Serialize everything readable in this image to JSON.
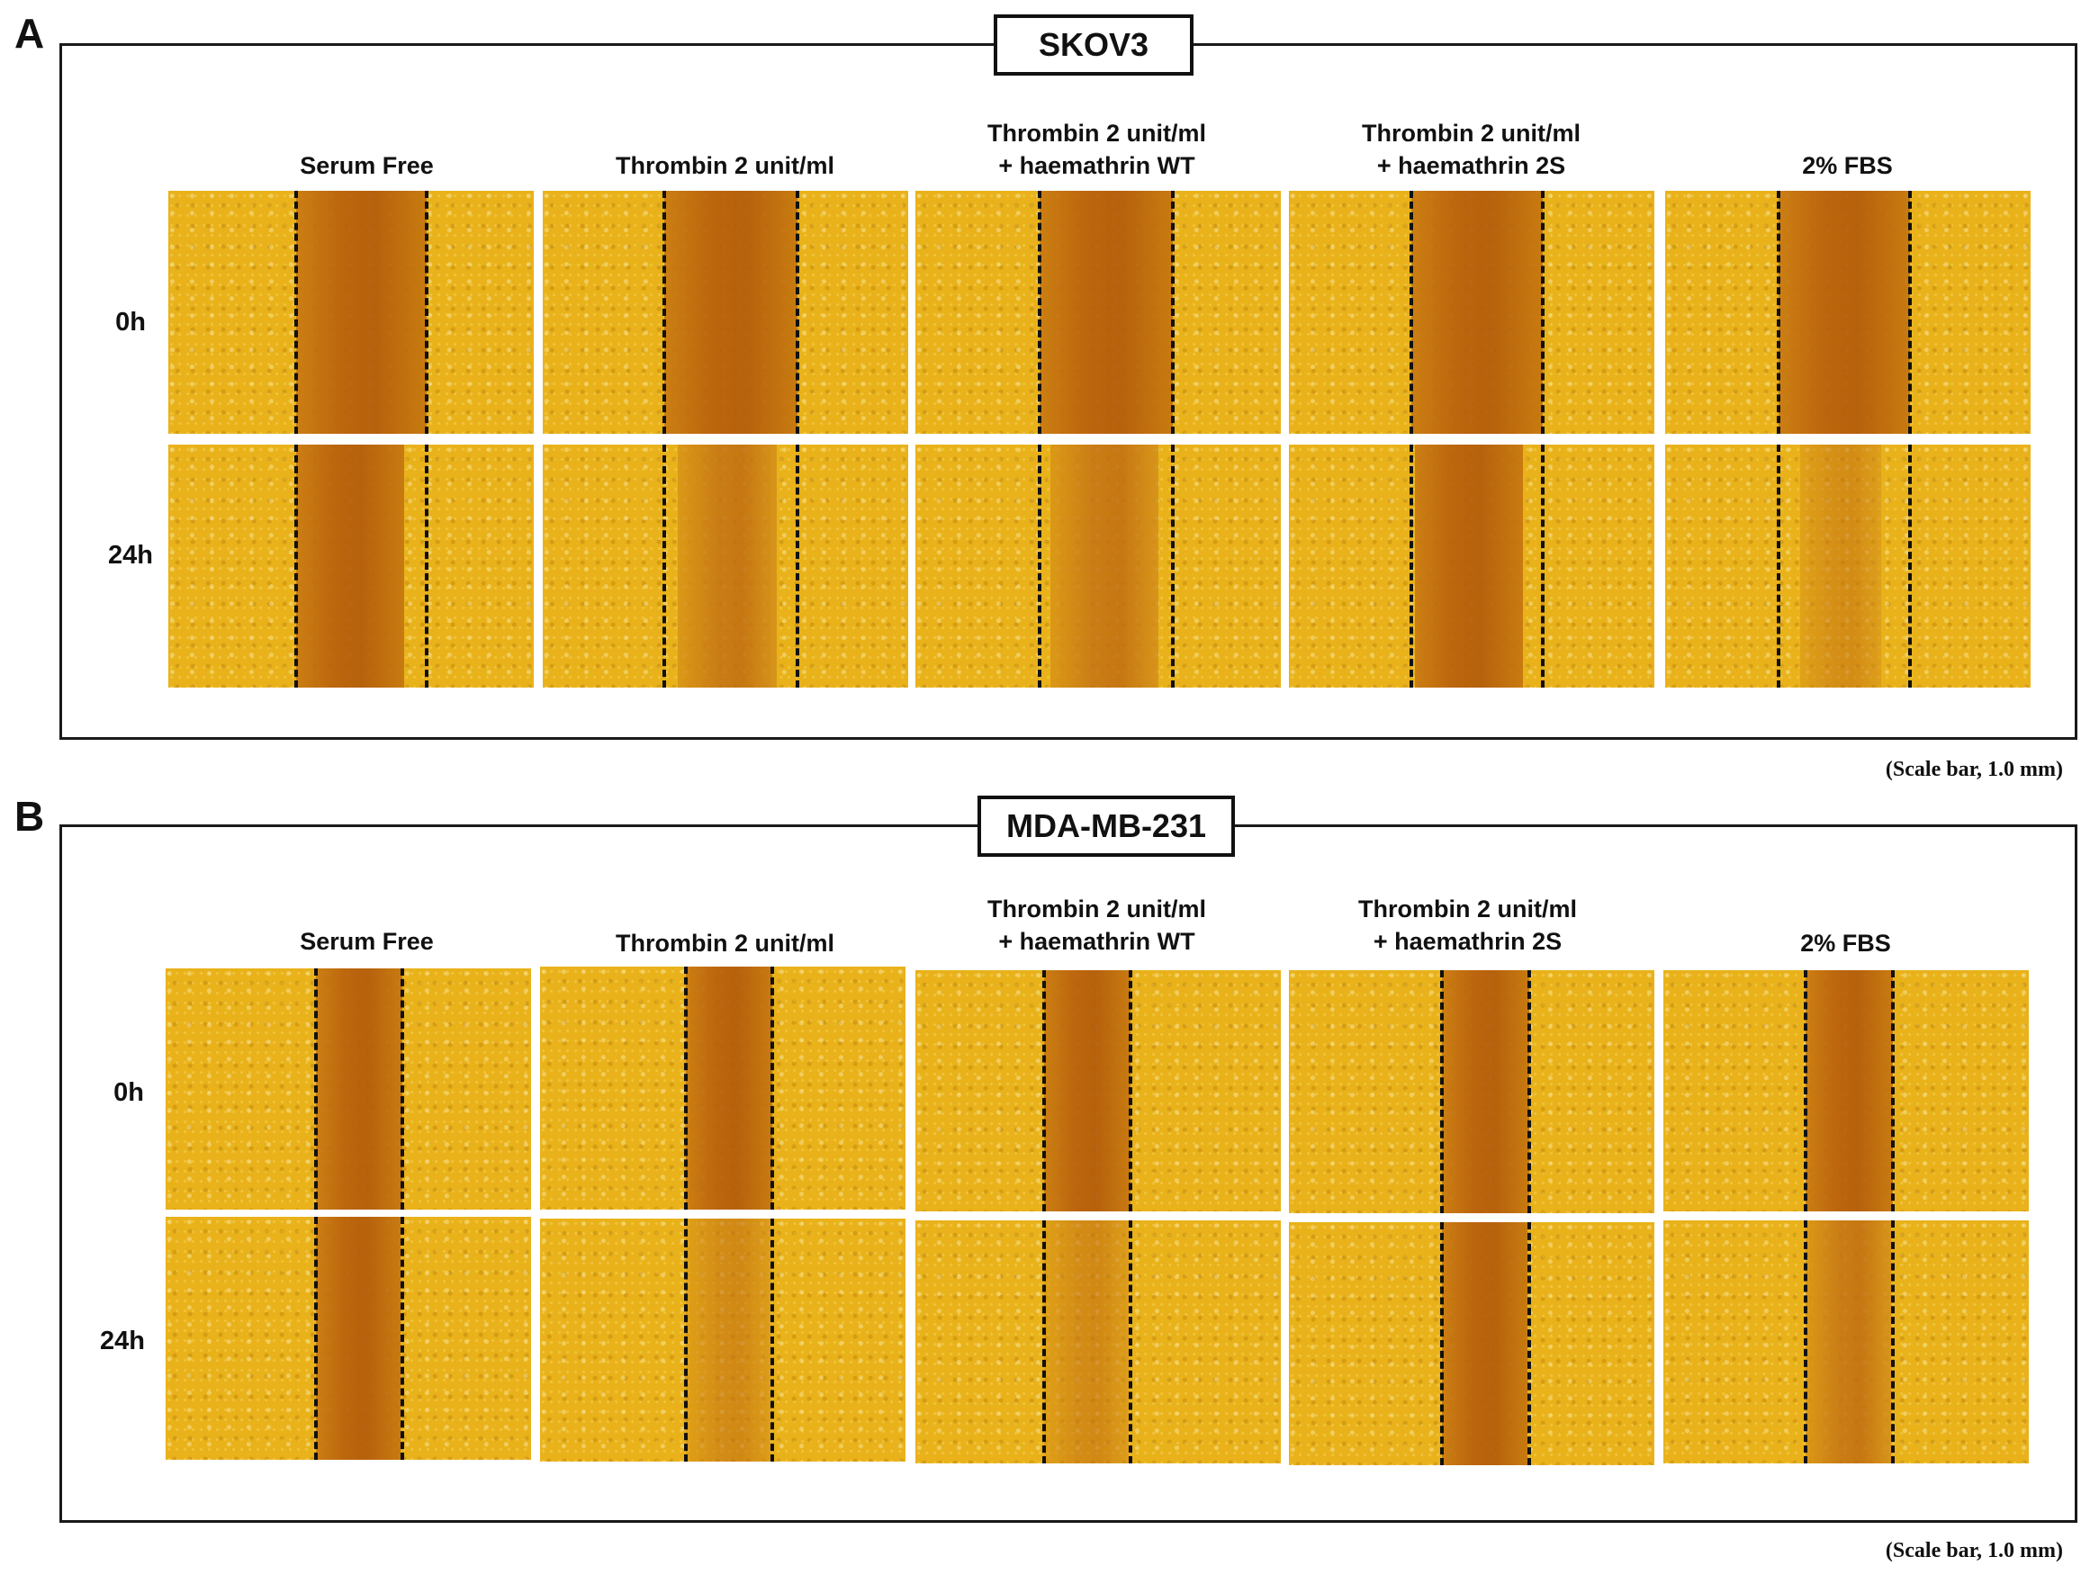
{
  "panels": [
    {
      "letter": "A",
      "cell_line": "SKOV3",
      "conditions": [
        {
          "line1": "Serum Free",
          "line2": ""
        },
        {
          "line1": "Thrombin 2 unit/ml",
          "line2": ""
        },
        {
          "line1": "Thrombin 2 unit/ml",
          "line2": "+ haemathrin WT"
        },
        {
          "line1": "Thrombin 2 unit/ml",
          "line2": "+ haemathrin 2S"
        },
        {
          "line1": "2% FBS",
          "line2": ""
        }
      ],
      "timepoints": [
        "0h",
        "24h"
      ],
      "scale_bar": "(Scale bar, 1.0 mm)"
    },
    {
      "letter": "B",
      "cell_line": "MDA-MB-231",
      "conditions": [
        {
          "line1": "Serum Free",
          "line2": ""
        },
        {
          "line1": "Thrombin 2 unit/ml",
          "line2": ""
        },
        {
          "line1": "Thrombin 2 unit/ml",
          "line2": "+ haemathrin WT"
        },
        {
          "line1": "Thrombin 2 unit/ml",
          "line2": "+ haemathrin 2S"
        },
        {
          "line1": "2% FBS",
          "line2": ""
        }
      ],
      "timepoints": [
        "0h",
        "24h"
      ],
      "scale_bar": "(Scale bar, 1.0 mm)"
    }
  ],
  "colors": {
    "cell_monolayer": "#e9b21a",
    "wound_gap": "#b85f0c",
    "dashed_boundary": "#111111",
    "frame": "#1a1a1a"
  }
}
